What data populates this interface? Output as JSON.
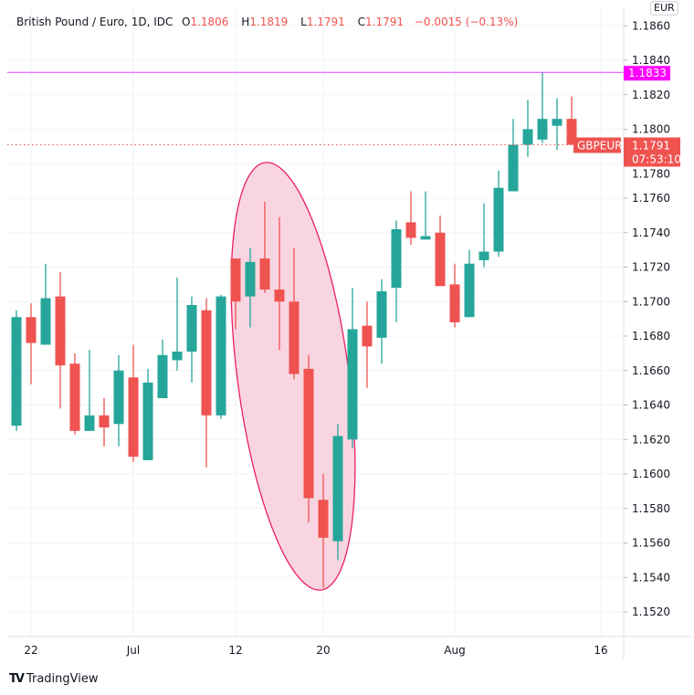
{
  "legend": {
    "title": "British Pound / Euro, 1D, IDC",
    "o_label": "O",
    "o": "1.1806",
    "h_label": "H",
    "h": "1.1819",
    "l_label": "L",
    "l": "1.1791",
    "c_label": "C",
    "c": "1.1791",
    "change": "−0.0015 (−0.13%)"
  },
  "currency_badge": "EUR",
  "brand": "TradingView",
  "colors": {
    "up": "#26a69a",
    "down": "#ef5350",
    "ellipse_fill": "#f8d0de",
    "ellipse_stroke": "#e91e63",
    "hline": "#e040fb",
    "hline_label": "#ff00ff"
  },
  "chart_data": {
    "type": "candlestick",
    "symbol": "GBPEUR",
    "ylim": [
      1.1505,
      1.1865
    ],
    "y_ticks": [
      "1.1520",
      "1.1540",
      "1.1560",
      "1.1580",
      "1.1600",
      "1.1620",
      "1.1640",
      "1.1660",
      "1.1680",
      "1.1700",
      "1.1720",
      "1.1740",
      "1.1760",
      "1.1780",
      "1.1800",
      "1.1820",
      "1.1840",
      "1.1860"
    ],
    "y_tick_values": [
      1.152,
      1.154,
      1.156,
      1.158,
      1.16,
      1.162,
      1.164,
      1.166,
      1.168,
      1.17,
      1.172,
      1.174,
      1.176,
      1.178,
      1.18,
      1.182,
      1.184,
      1.186
    ],
    "x_ticks": [
      {
        "label": "22",
        "index": 1
      },
      {
        "label": "Jul",
        "index": 8
      },
      {
        "label": "12",
        "index": 15
      },
      {
        "label": "20",
        "index": 21
      },
      {
        "label": "Aug",
        "index": 30
      },
      {
        "label": "16",
        "index": 40
      }
    ],
    "candles": [
      [
        1.1628,
        1.1695,
        1.1625,
        1.1691
      ],
      [
        1.1691,
        1.1699,
        1.1652,
        1.1676
      ],
      [
        1.1675,
        1.1722,
        1.1675,
        1.1702
      ],
      [
        1.1703,
        1.1717,
        1.1638,
        1.1663
      ],
      [
        1.1664,
        1.167,
        1.1623,
        1.1625
      ],
      [
        1.1625,
        1.1672,
        1.1625,
        1.1634
      ],
      [
        1.1634,
        1.1644,
        1.1616,
        1.1627
      ],
      [
        1.1629,
        1.1669,
        1.1616,
        1.166
      ],
      [
        1.1656,
        1.1675,
        1.1607,
        1.161
      ],
      [
        1.1608,
        1.1661,
        1.1608,
        1.1653
      ],
      [
        1.1644,
        1.1678,
        1.1644,
        1.1669
      ],
      [
        1.1666,
        1.1714,
        1.166,
        1.1671
      ],
      [
        1.1671,
        1.1703,
        1.1653,
        1.1698
      ],
      [
        1.1695,
        1.1702,
        1.1604,
        1.1634
      ],
      [
        1.1634,
        1.1704,
        1.1632,
        1.1703
      ],
      [
        1.1725,
        1.1725,
        1.1684,
        1.17
      ],
      [
        1.1703,
        1.1731,
        1.1685,
        1.1723
      ],
      [
        1.1725,
        1.1758,
        1.1705,
        1.1707
      ],
      [
        1.1707,
        1.1749,
        1.1672,
        1.17
      ],
      [
        1.17,
        1.1731,
        1.1655,
        1.1658
      ],
      [
        1.1661,
        1.1669,
        1.1572,
        1.1586
      ],
      [
        1.1585,
        1.16,
        1.1534,
        1.1563
      ],
      [
        1.1561,
        1.1629,
        1.155,
        1.1622
      ],
      [
        1.162,
        1.1708,
        1.1615,
        1.1684
      ],
      [
        1.1686,
        1.17,
        1.165,
        1.1674
      ],
      [
        1.1679,
        1.1713,
        1.1664,
        1.1706
      ],
      [
        1.1708,
        1.1747,
        1.1688,
        1.1742
      ],
      [
        1.1746,
        1.1764,
        1.1733,
        1.1737
      ],
      [
        1.1736,
        1.1764,
        1.1736,
        1.1738
      ],
      [
        1.174,
        1.175,
        1.1709,
        1.1709
      ],
      [
        1.171,
        1.1722,
        1.1685,
        1.1688
      ],
      [
        1.1691,
        1.173,
        1.1691,
        1.1722
      ],
      [
        1.1724,
        1.1757,
        1.172,
        1.1729
      ],
      [
        1.1729,
        1.1776,
        1.1726,
        1.1766
      ],
      [
        1.1764,
        1.1806,
        1.1764,
        1.1791
      ],
      [
        1.1791,
        1.1817,
        1.1784,
        1.18
      ],
      [
        1.1794,
        1.1833,
        1.1792,
        1.1806
      ],
      [
        1.1802,
        1.1818,
        1.1788,
        1.1806
      ],
      [
        1.1806,
        1.1819,
        1.1791,
        1.1791
      ]
    ],
    "candle_format": [
      "open",
      "high",
      "low",
      "close"
    ],
    "horizontal_line": {
      "value": 1.1833,
      "label": "1.1833"
    },
    "last_price": {
      "value": 1.1791,
      "label": "1.1791",
      "countdown": "07:53:10",
      "symbol_label": "GBPEUR"
    },
    "annotation": "ellipse around Jul 12 – Jul 21 dip"
  }
}
